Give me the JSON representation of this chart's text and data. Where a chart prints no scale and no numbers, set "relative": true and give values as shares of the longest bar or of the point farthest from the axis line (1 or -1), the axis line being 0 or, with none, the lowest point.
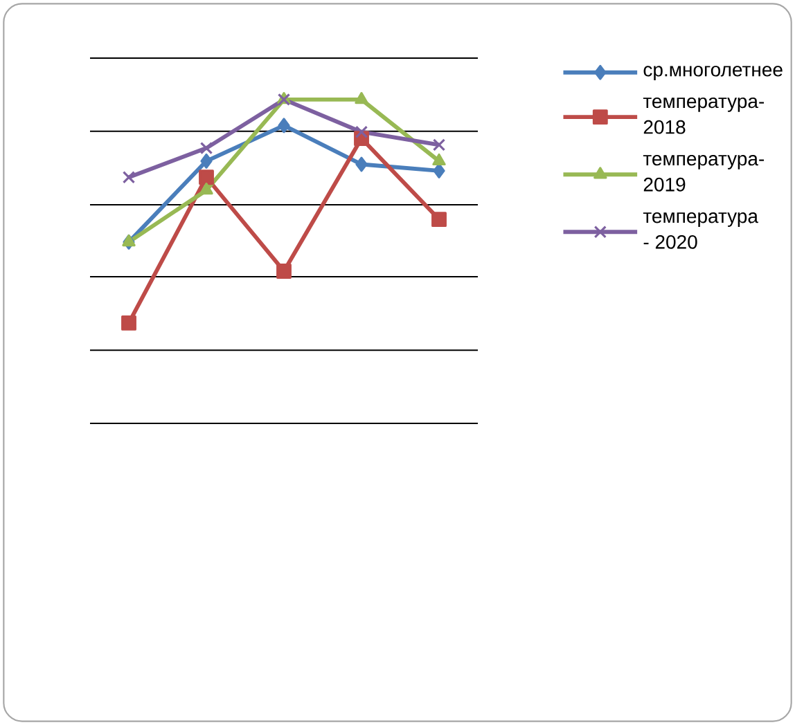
{
  "chart_data": {
    "type": "line",
    "relative": true,
    "categories": [
      null,
      null,
      null,
      null,
      null
    ],
    "grid": "y",
    "legend": "right",
    "series": [
      {
        "name": "ср.многолетнее",
        "color": "#4a7ebb",
        "marker": "diamond",
        "values": [
          0.56,
          0.81,
          0.92,
          0.8,
          0.78
        ]
      },
      {
        "name": "температура-2018",
        "color": "#be4b48",
        "marker": "square",
        "values": [
          0.31,
          0.76,
          0.47,
          0.88,
          0.63
        ]
      },
      {
        "name": "температура-2019",
        "color": "#98b954",
        "marker": "triangle",
        "values": [
          0.56,
          0.72,
          1,
          1,
          0.81
        ]
      },
      {
        "name": "температура - 2020",
        "color": "#7d60a0",
        "marker": "cross",
        "values": [
          0.76,
          0.85,
          1,
          0.9,
          0.86
        ]
      }
    ]
  }
}
